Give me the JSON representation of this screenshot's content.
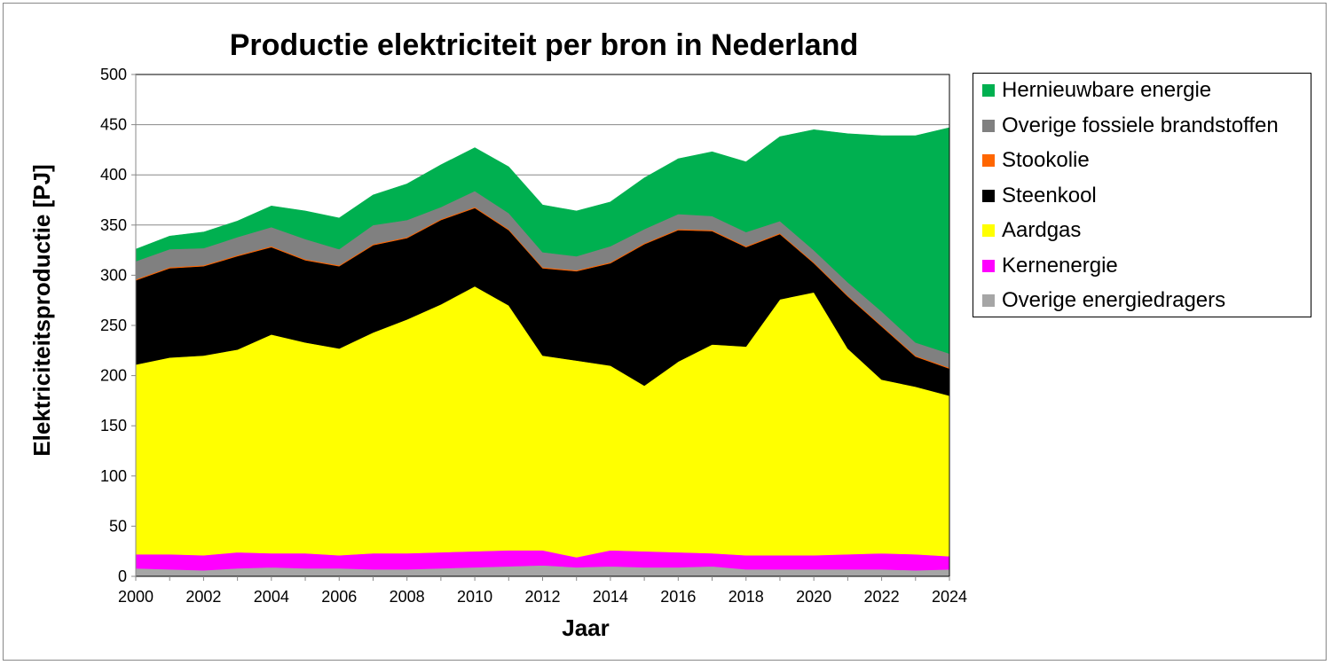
{
  "chart_data": {
    "type": "area",
    "stacked": true,
    "title": "Productie elektriciteit per bron in Nederland",
    "xlabel": "Jaar",
    "ylabel": "Elektriciteitsproductie [PJ]",
    "ylim": [
      0,
      500
    ],
    "xlim": [
      2000,
      2024
    ],
    "yticks": [
      0,
      50,
      100,
      150,
      200,
      250,
      300,
      350,
      400,
      450,
      500
    ],
    "xticks": [
      2000,
      2002,
      2004,
      2006,
      2008,
      2010,
      2012,
      2014,
      2016,
      2018,
      2020,
      2022,
      2024
    ],
    "grid": true,
    "legend_position": "right",
    "x": [
      2000,
      2001,
      2002,
      2003,
      2004,
      2005,
      2006,
      2007,
      2008,
      2009,
      2010,
      2011,
      2012,
      2013,
      2014,
      2015,
      2016,
      2017,
      2018,
      2019,
      2020,
      2021,
      2022,
      2023,
      2024
    ],
    "series": [
      {
        "name": "Overige energiedragers",
        "color": "#a6a6a6",
        "values": [
          8,
          7,
          6,
          8,
          9,
          8,
          8,
          7,
          7,
          8,
          9,
          10,
          11,
          9,
          10,
          9,
          9,
          10,
          7,
          7,
          7,
          7,
          7,
          6,
          7
        ]
      },
      {
        "name": "Kernenergie",
        "color": "#ff00ff",
        "values": [
          14,
          15,
          15,
          16,
          14,
          15,
          13,
          16,
          16,
          16,
          16,
          16,
          15,
          10,
          16,
          16,
          15,
          13,
          14,
          14,
          14,
          15,
          16,
          16,
          13
        ]
      },
      {
        "name": "Aardgas",
        "color": "#ffff00",
        "values": [
          189,
          196,
          199,
          202,
          218,
          210,
          206,
          220,
          233,
          247,
          264,
          244,
          194,
          196,
          184,
          165,
          190,
          208,
          208,
          255,
          262,
          205,
          173,
          167,
          160
        ]
      },
      {
        "name": "Steenkool",
        "color": "#000000",
        "values": [
          84,
          89,
          89,
          93,
          87,
          82,
          82,
          87,
          81,
          84,
          78,
          75,
          87,
          89,
          102,
          141,
          131,
          113,
          99,
          65,
          29,
          52,
          53,
          30,
          27
        ]
      },
      {
        "name": "Stookolie",
        "color": "#ff6600",
        "values": [
          1,
          1,
          1,
          1,
          1,
          1,
          1,
          1,
          1,
          1,
          1,
          1,
          1,
          1,
          1,
          1,
          1,
          1,
          1,
          1,
          1,
          1,
          1,
          1,
          1
        ]
      },
      {
        "name": "Overige fossiele brandstoffen",
        "color": "#808080",
        "values": [
          18,
          18,
          17,
          18,
          19,
          20,
          16,
          19,
          17,
          12,
          16,
          16,
          15,
          14,
          16,
          14,
          15,
          14,
          14,
          12,
          12,
          13,
          14,
          13,
          14
        ]
      },
      {
        "name": "Hernieuwbare energie",
        "color": "#00b050",
        "values": [
          12,
          13,
          16,
          16,
          21,
          28,
          31,
          30,
          36,
          42,
          43,
          46,
          47,
          45,
          44,
          51,
          55,
          64,
          70,
          84,
          120,
          148,
          175,
          206,
          225
        ]
      }
    ]
  }
}
